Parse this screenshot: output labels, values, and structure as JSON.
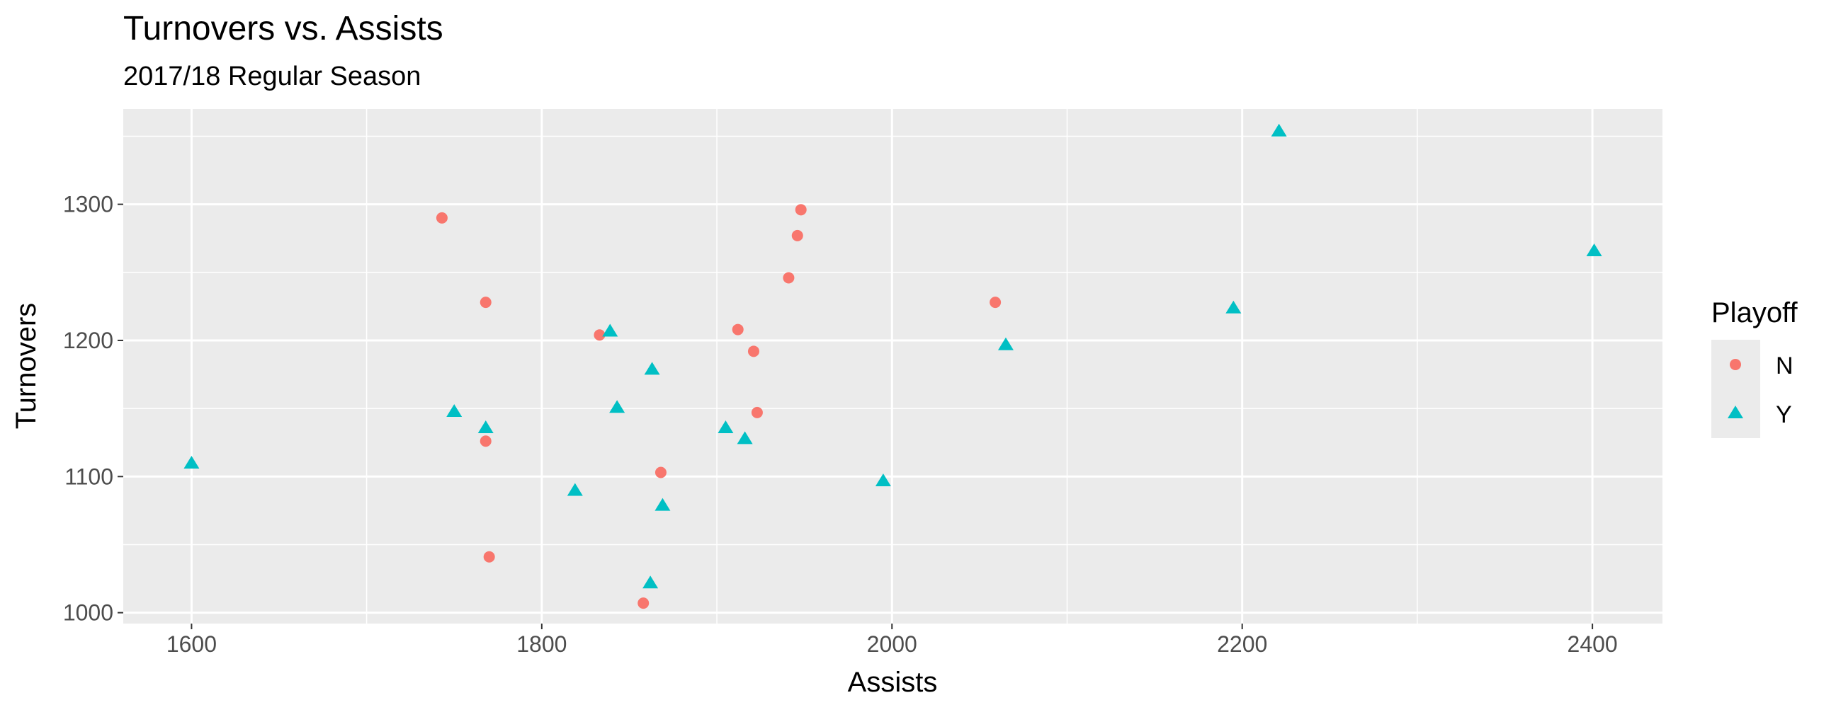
{
  "chart_data": {
    "type": "scatter",
    "title": "Turnovers vs. Assists",
    "subtitle": "2017/18 Regular Season",
    "xlabel": "Assists",
    "ylabel": "Turnovers",
    "xlim": [
      1561,
      2440
    ],
    "ylim": [
      992,
      1370
    ],
    "x_ticks": [
      1600,
      1800,
      2000,
      2200,
      2400
    ],
    "x_tick_labels": [
      "1600",
      "1800",
      "2000",
      "2200",
      "2400"
    ],
    "x_minor": [
      1700,
      1900,
      2100,
      2300
    ],
    "y_ticks": [
      1000,
      1100,
      1200,
      1300
    ],
    "y_tick_labels": [
      "1000",
      "1100",
      "1200",
      "1300"
    ],
    "y_minor": [
      1050,
      1150,
      1250,
      1350
    ],
    "grid": true,
    "legend": {
      "title": "Playoff",
      "placement": "right",
      "entries": [
        {
          "label": "N",
          "shape": "circle",
          "color": "#F8766D"
        },
        {
          "label": "Y",
          "shape": "triangle",
          "color": "#00BFC4"
        }
      ]
    },
    "series": [
      {
        "name": "N",
        "color": "#F8766D",
        "shape": "circle",
        "points": [
          [
            1743,
            1290
          ],
          [
            1768,
            1228
          ],
          [
            1768,
            1126
          ],
          [
            1770,
            1041
          ],
          [
            1833,
            1204
          ],
          [
            1858,
            1007
          ],
          [
            1868,
            1103
          ],
          [
            1912,
            1208
          ],
          [
            1921,
            1192
          ],
          [
            1923,
            1147
          ],
          [
            1941,
            1246
          ],
          [
            1946,
            1277
          ],
          [
            1948,
            1296
          ],
          [
            2059,
            1228
          ]
        ]
      },
      {
        "name": "Y",
        "color": "#00BFC4",
        "shape": "triangle",
        "points": [
          [
            1600,
            1110
          ],
          [
            1750,
            1148
          ],
          [
            1768,
            1136
          ],
          [
            1819,
            1090
          ],
          [
            1839,
            1207
          ],
          [
            1843,
            1151
          ],
          [
            1862,
            1022
          ],
          [
            1863,
            1179
          ],
          [
            1869,
            1079
          ],
          [
            1905,
            1136
          ],
          [
            1916,
            1128
          ],
          [
            1995,
            1097
          ],
          [
            2065,
            1197
          ],
          [
            2195,
            1224
          ],
          [
            2221,
            1354
          ],
          [
            2401,
            1266
          ]
        ]
      }
    ]
  }
}
